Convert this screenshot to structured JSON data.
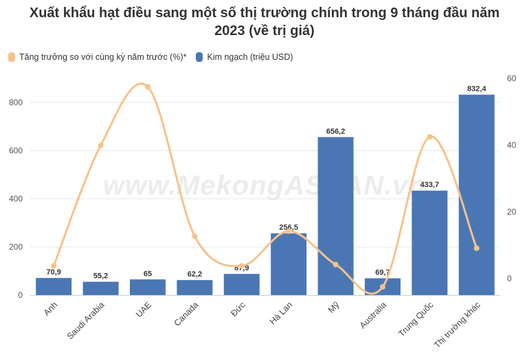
{
  "title_line1": "Xuất khẩu hạt điều sang một số thị trường chính trong 9 tháng đầu năm",
  "title_line2": "2023 (về trị giá)",
  "watermark": "www.MekongASEAN.vn",
  "colors": {
    "bar": "#4a77b4",
    "line": "#f7c28a",
    "grid": "#e6e6e6",
    "text": "#333333"
  },
  "chart_data": {
    "type": "bar",
    "categories": [
      "Anh",
      "Saudi Arabia",
      "UAE",
      "Canada",
      "Đức",
      "Hà Lan",
      "Mỹ",
      "Australia",
      "Trung Quốc",
      "Thị trường khác"
    ],
    "series": [
      {
        "name": "Kim ngạch (triệu USD)",
        "type": "bar",
        "axis": "left",
        "values": [
          70.9,
          55.2,
          65,
          62.2,
          87.9,
          256.5,
          656.2,
          69.7,
          433.7,
          832.4
        ],
        "labels": [
          "70,9",
          "55,2",
          "65",
          "62,2",
          "87,9",
          "256,5",
          "656,2",
          "69,7",
          "433,7",
          "832,4"
        ]
      },
      {
        "name": "Tăng trưởng so với cùng kỳ năm trước (%)*",
        "type": "line",
        "axis": "right",
        "values": [
          3.8,
          39.9,
          57.5,
          12.7,
          3.8,
          14.2,
          4.2,
          -2.5,
          42.5,
          9.1
        ]
      }
    ],
    "y_left": {
      "ylim": [
        0,
        900
      ],
      "ticks": [
        0,
        200,
        400,
        600,
        800
      ]
    },
    "y_right": {
      "ylim": [
        -5,
        60
      ],
      "ticks": [
        0,
        20,
        40,
        60
      ]
    },
    "grid": true,
    "legend": "top-left"
  }
}
